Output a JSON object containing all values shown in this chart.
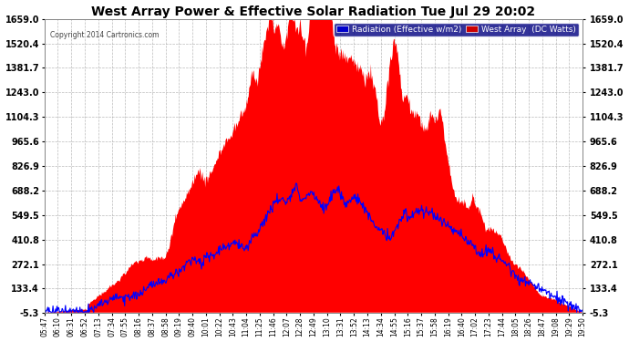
{
  "title": "West Array Power & Effective Solar Radiation Tue Jul 29 20:02",
  "copyright": "Copyright 2014 Cartronics.com",
  "legend_radiation": "Radiation (Effective w/m2)",
  "legend_west": "West Array  (DC Watts)",
  "ymin": -5.3,
  "ymax": 1659.0,
  "yticks": [
    -5.3,
    133.4,
    272.1,
    410.8,
    549.5,
    688.2,
    826.9,
    965.6,
    1104.3,
    1243.0,
    1381.7,
    1520.4,
    1659.0
  ],
  "bg_color": "#ffffff",
  "plot_bg_color": "#ffffff",
  "grid_color": "#aaaaaa",
  "red_color": "#ff0000",
  "blue_color": "#0000ff",
  "title_color": "#000000",
  "tick_label_color": "#000000",
  "copyright_color": "#555555",
  "xtick_labels": [
    "05:47",
    "06:10",
    "06:31",
    "06:52",
    "07:13",
    "07:34",
    "07:55",
    "08:16",
    "08:37",
    "08:58",
    "09:19",
    "09:40",
    "10:01",
    "10:22",
    "10:43",
    "11:04",
    "11:25",
    "11:46",
    "12:07",
    "12:28",
    "12:49",
    "13:10",
    "13:31",
    "13:52",
    "14:13",
    "14:34",
    "14:55",
    "15:16",
    "15:37",
    "15:58",
    "16:19",
    "16:40",
    "17:02",
    "17:23",
    "17:44",
    "18:05",
    "18:26",
    "18:47",
    "19:08",
    "19:29",
    "19:50"
  ],
  "num_points": 820,
  "legend_rad_color": "#0000cc",
  "legend_rad_bg": "#0000cc",
  "legend_west_bg": "#cc0000"
}
